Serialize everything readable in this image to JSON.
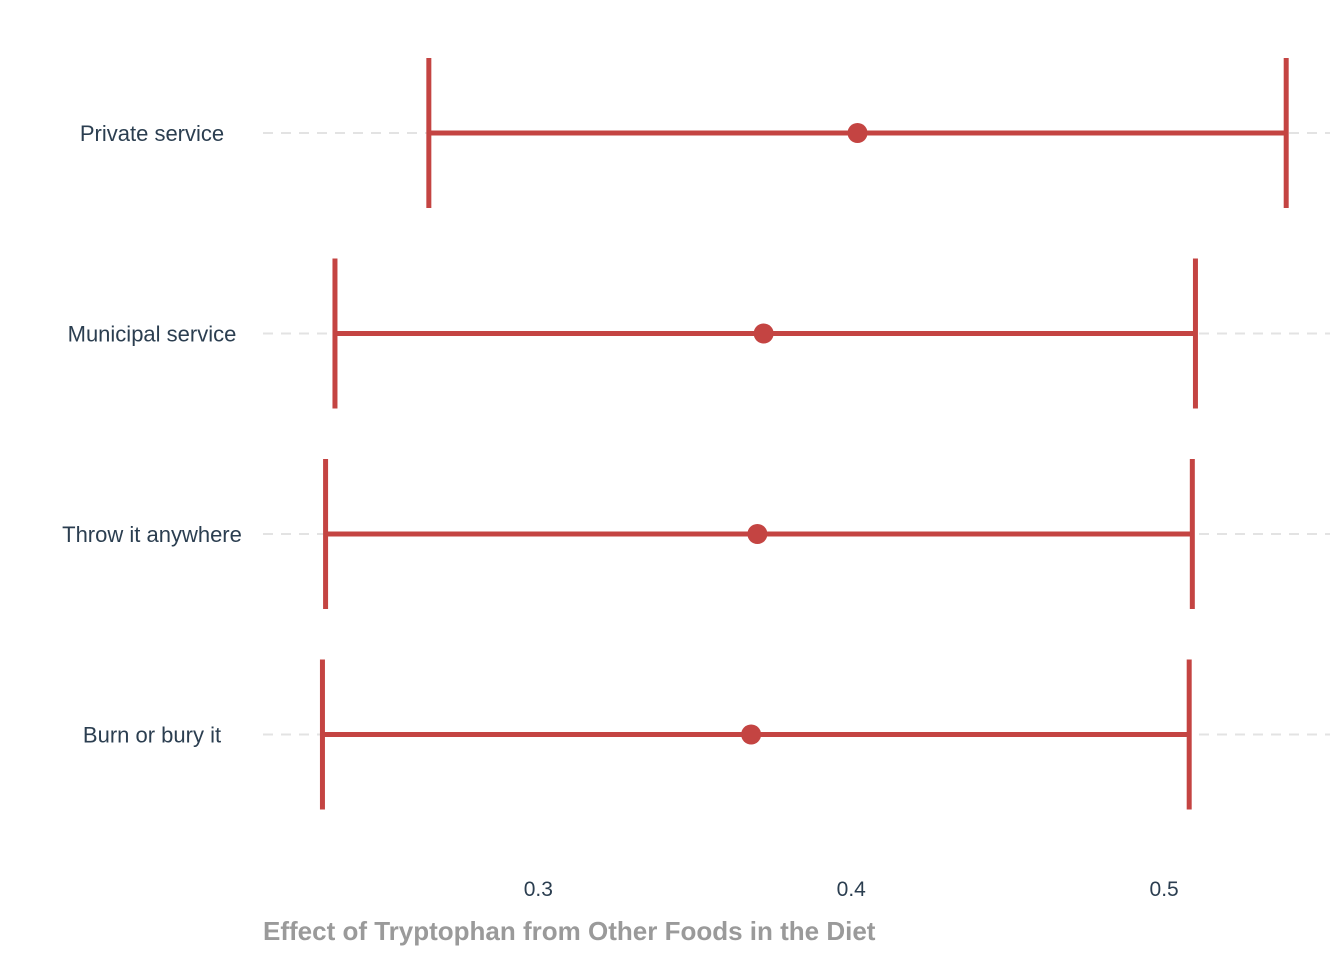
{
  "chart_data": {
    "type": "errorbar",
    "title": "",
    "xlabel": "Effect of Tryptophan from Other Foods in the Diet",
    "ylabel": "",
    "xlim": [
      0.212,
      0.553
    ],
    "xticks": [
      0.3,
      0.4,
      0.5
    ],
    "xtick_labels": [
      "0.3",
      "0.4",
      "0.5"
    ],
    "categories": [
      "Private service",
      "Municipal service",
      "Throw it anywhere",
      "Burn or bury it"
    ],
    "estimates": [
      0.402,
      0.372,
      0.37,
      0.368
    ],
    "lower": [
      0.265,
      0.235,
      0.232,
      0.231
    ],
    "upper": [
      0.539,
      0.51,
      0.509,
      0.508
    ],
    "grid": {
      "y_major": "dashed",
      "x_major": false
    },
    "legend": "none",
    "colors": {
      "mark": "#c44442",
      "grid": "#e3e3e3",
      "label": "#2b3e50",
      "axis_title": "#9a9a9a"
    }
  }
}
